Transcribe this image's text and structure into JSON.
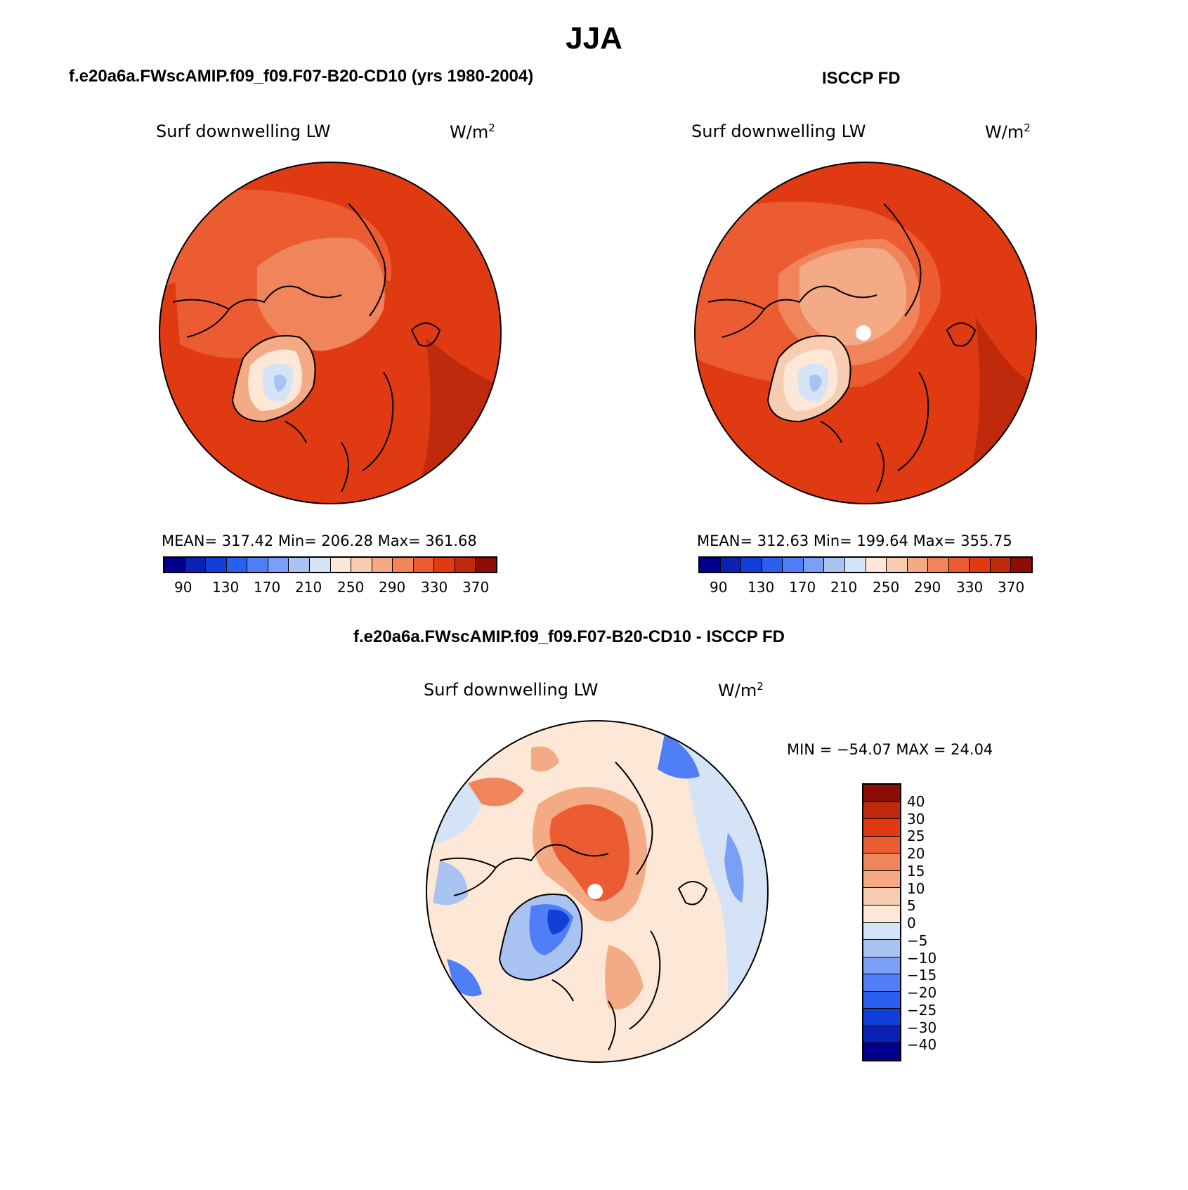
{
  "title": "JJA",
  "panels": [
    {
      "title": "f.e20a6a.FWscAMIP.f09_f09.F07-B20-CD10 (yrs 1980-2004)",
      "variable": "Surf downwelling LW",
      "units": "W/m",
      "units_sup": "2",
      "stats": "MEAN= 317.42   Min= 206.28   Max= 361.68"
    },
    {
      "title": "ISCCP FD",
      "variable": "Surf downwelling LW",
      "units": "W/m",
      "units_sup": "2",
      "stats": "MEAN= 312.63   Min= 199.64   Max= 355.75"
    },
    {
      "title": "f.e20a6a.FWscAMIP.f09_f09.F07-B20-CD10 - ISCCP FD",
      "variable": "Surf downwelling LW",
      "units": "W/m",
      "units_sup": "2",
      "stats": "MIN = −54.07 MAX =   24.04"
    }
  ],
  "chart_data": [
    {
      "type": "heatmap",
      "projection": "north polar stereographic",
      "title": "f.e20a6a.FWscAMIP.f09_f09.F07-B20-CD10 (yrs 1980-2004)",
      "variable": "Surf downwelling LW",
      "units": "W/m2",
      "mean": 317.42,
      "min": 206.28,
      "max": 361.68,
      "colorbar_ticks": [
        "90",
        "130",
        "170",
        "210",
        "250",
        "290",
        "330",
        "370"
      ],
      "colorbar_colors": [
        "#00008c",
        "#0a22b4",
        "#1140d8",
        "#2a5ff0",
        "#4f7ef6",
        "#7aa0f5",
        "#a8c2f2",
        "#d5e3f7",
        "#fde7d7",
        "#f8ccb0",
        "#f4aa85",
        "#f0855c",
        "#ec5c32",
        "#e03a12",
        "#c02a0c",
        "#8c0c06"
      ]
    },
    {
      "type": "heatmap",
      "projection": "north polar stereographic",
      "title": "ISCCP FD",
      "variable": "Surf downwelling LW",
      "units": "W/m2",
      "mean": 312.63,
      "min": 199.64,
      "max": 355.75,
      "colorbar_ticks": [
        "90",
        "130",
        "170",
        "210",
        "250",
        "290",
        "330",
        "370"
      ],
      "colorbar_colors": [
        "#00008c",
        "#0a22b4",
        "#1140d8",
        "#2a5ff0",
        "#4f7ef6",
        "#7aa0f5",
        "#a8c2f2",
        "#d5e3f7",
        "#fde7d7",
        "#f8ccb0",
        "#f4aa85",
        "#f0855c",
        "#ec5c32",
        "#e03a12",
        "#c02a0c",
        "#8c0c06"
      ]
    },
    {
      "type": "heatmap",
      "projection": "north polar stereographic",
      "title": "f.e20a6a.FWscAMIP.f09_f09.F07-B20-CD10 - ISCCP FD",
      "variable": "Surf downwelling LW",
      "units": "W/m2",
      "min": -54.07,
      "max": 24.04,
      "colorbar_ticks": [
        "40",
        "30",
        "25",
        "20",
        "15",
        "10",
        "5",
        "0",
        "−5",
        "−10",
        "−15",
        "−20",
        "−25",
        "−30",
        "−40"
      ],
      "colorbar_colors": [
        "#8c0c06",
        "#c02a0c",
        "#e03a12",
        "#ec5c32",
        "#f0855c",
        "#f4aa85",
        "#f8ccb0",
        "#fde7d7",
        "#d5e3f7",
        "#a8c2f2",
        "#7aa0f5",
        "#4f7ef6",
        "#2a5ff0",
        "#1140d8",
        "#0a22b4",
        "#00008c"
      ]
    }
  ]
}
